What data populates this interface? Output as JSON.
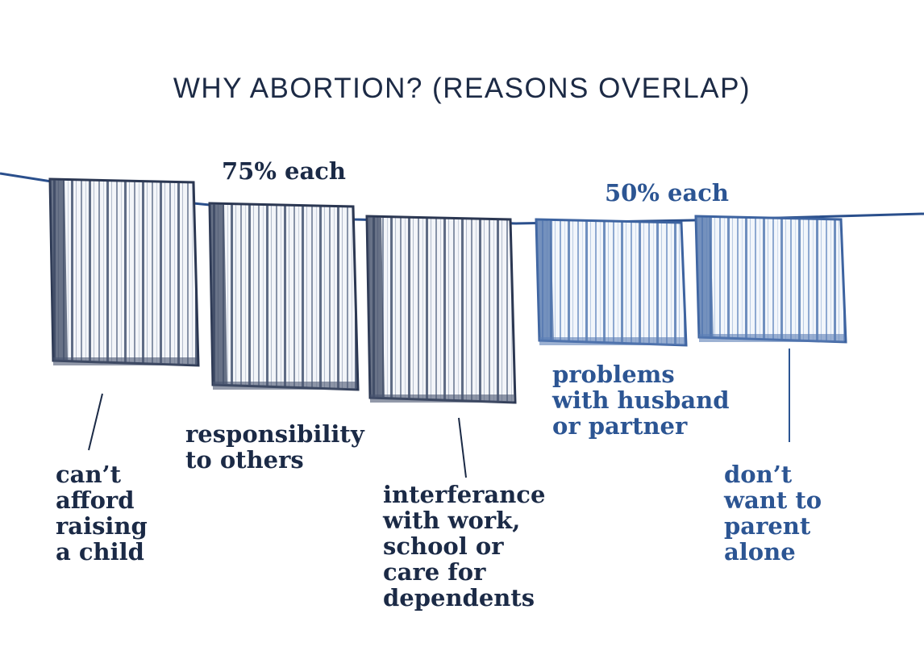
{
  "chart_data": {
    "type": "bar",
    "title": "WHY ABORTION? (REASONS OVERLAP)",
    "groups": [
      {
        "label": "75% each",
        "value": 75,
        "members": [
          0,
          1,
          2
        ]
      },
      {
        "label": "50% each",
        "value": 50,
        "members": [
          3,
          4
        ]
      }
    ],
    "categories": [
      "can’t\nafford\nraising\na child",
      "responsibility\nto others",
      "interferance\nwith work,\nschool or\ncare for\ndependents",
      "problems\nwith husband\nor  partner",
      "don’t\nwant to\nparent\nalone"
    ],
    "values": [
      75,
      75,
      75,
      50,
      50
    ],
    "colors": {
      "dark": "#1b2a46",
      "blue": "#2c5593",
      "line": "#2a4f8c"
    }
  }
}
